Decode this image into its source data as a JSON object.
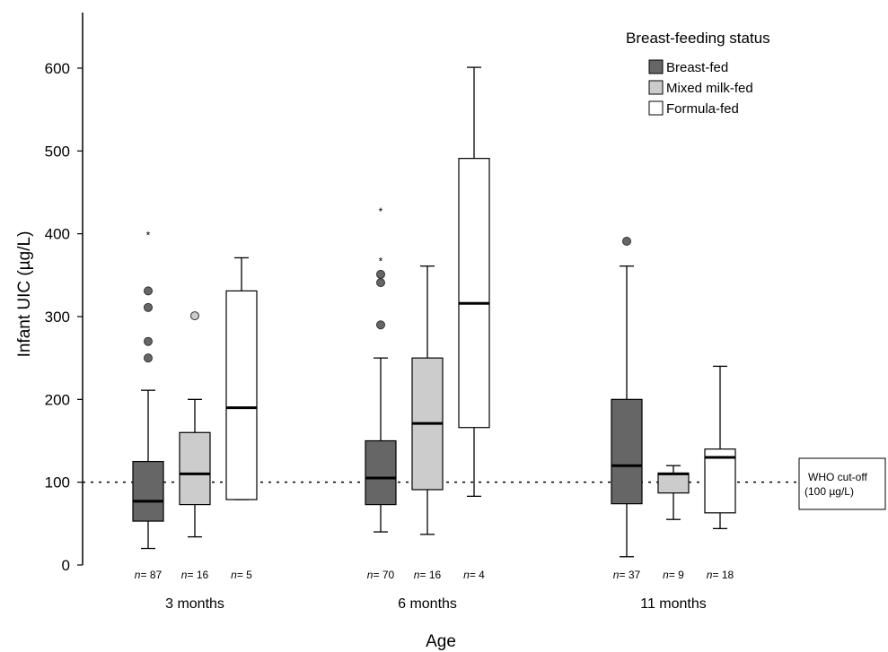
{
  "chart_data": {
    "type": "box",
    "xlabel": "Age",
    "ylabel": "Infant UIC (µg/L)",
    "ylim": [
      0,
      660
    ],
    "yticks": [
      0,
      100,
      200,
      300,
      400,
      500,
      600
    ],
    "groups": [
      "3 months",
      "6 months",
      "11 months"
    ],
    "legend": {
      "title": "Breast-feeding status",
      "position": "top-right",
      "entries": [
        {
          "name": "Breast-fed",
          "color": "#666666"
        },
        {
          "name": "Mixed milk-fed",
          "color": "#cccccc"
        },
        {
          "name": "Formula-fed",
          "color": "#ffffff"
        }
      ]
    },
    "reference_line": {
      "value": 100,
      "style": "dotted",
      "label_line1": "WHO cut-off",
      "label_line2": "(100 µg/L)"
    },
    "n_prefix": "n",
    "boxes": [
      {
        "group": "3 months",
        "series": "Breast-fed",
        "n": "87",
        "n_label": "= 87",
        "whisker_low": 20,
        "q1": 53,
        "median": 77,
        "q3": 125,
        "whisker_high": 211,
        "outliers": [
          250,
          270,
          311,
          331
        ],
        "extremes": [
          401
        ]
      },
      {
        "group": "3 months",
        "series": "Mixed milk-fed",
        "n": "16",
        "n_label": "= 16",
        "whisker_low": 34,
        "q1": 73,
        "median": 110,
        "q3": 160,
        "whisker_high": 200,
        "outliers": [
          301
        ],
        "extremes": []
      },
      {
        "group": "3 months",
        "series": "Formula-fed",
        "n": "5",
        "n_label": "= 5",
        "whisker_low": 79,
        "q1": 79,
        "median": 190,
        "q3": 331,
        "whisker_high": 371,
        "outliers": [],
        "extremes": []
      },
      {
        "group": "6 months",
        "series": "Breast-fed",
        "n": "70",
        "n_label": "= 70",
        "whisker_low": 40,
        "q1": 73,
        "median": 105,
        "q3": 150,
        "whisker_high": 250,
        "outliers": [
          290,
          341,
          351
        ],
        "extremes": [
          370,
          430
        ]
      },
      {
        "group": "6 months",
        "series": "Mixed milk-fed",
        "n": "16",
        "n_label": "= 16",
        "whisker_low": 37,
        "q1": 91,
        "median": 171,
        "q3": 250,
        "whisker_high": 361,
        "outliers": [],
        "extremes": []
      },
      {
        "group": "6 months",
        "series": "Formula-fed",
        "n": "4",
        "n_label": "= 4",
        "whisker_low": 83,
        "q1": 166,
        "median": 316,
        "q3": 491,
        "whisker_high": 601,
        "outliers": [],
        "extremes": []
      },
      {
        "group": "11 months",
        "series": "Breast-fed",
        "n": "37",
        "n_label": "= 37",
        "whisker_low": 10,
        "q1": 74,
        "median": 120,
        "q3": 200,
        "whisker_high": 361,
        "outliers": [
          391
        ],
        "extremes": []
      },
      {
        "group": "11 months",
        "series": "Mixed milk-fed",
        "n": "9",
        "n_label": "= 9",
        "whisker_low": 55,
        "q1": 87,
        "median": 110,
        "q3": 111,
        "whisker_high": 120,
        "outliers": [],
        "extremes": []
      },
      {
        "group": "11 months",
        "series": "Formula-fed",
        "n": "18",
        "n_label": "= 18",
        "whisker_low": 44,
        "q1": 63,
        "median": 130,
        "q3": 140,
        "whisker_high": 240,
        "outliers": [],
        "extremes": []
      }
    ]
  }
}
